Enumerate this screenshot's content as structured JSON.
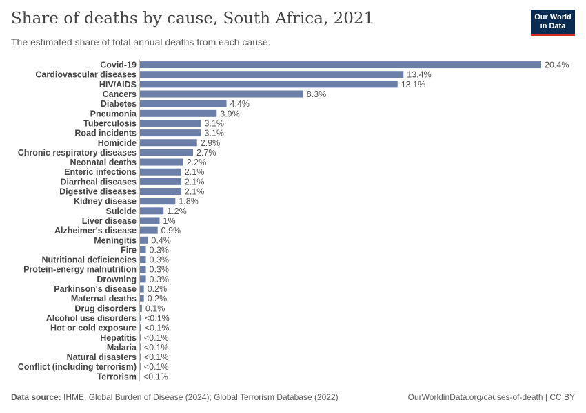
{
  "header": {
    "title": "Share of deaths by cause, South Africa, 2021",
    "subtitle": "The estimated share of total annual deaths from each cause."
  },
  "logo": {
    "line1": "Our World",
    "line2": "in Data"
  },
  "footer": {
    "source_label": "Data source:",
    "source_text": "IHME, Global Burden of Disease (2024); Global Terrorism Database (2022)",
    "right_text": "OurWorldinData.org/causes-of-death | CC BY"
  },
  "colors": {
    "bar": "#6b7fa8",
    "axis": "#bfbfbf",
    "logo_bg": "#0b2c52",
    "logo_accent": "#d42b21"
  },
  "chart_data": {
    "type": "bar",
    "orientation": "horizontal",
    "categories": [
      "Covid-19",
      "Cardiovascular diseases",
      "HIV/AIDS",
      "Cancers",
      "Diabetes",
      "Pneumonia",
      "Tuberculosis",
      "Road incidents",
      "Homicide",
      "Chronic respiratory diseases",
      "Neonatal deaths",
      "Enteric infections",
      "Diarrheal diseases",
      "Digestive diseases",
      "Kidney disease",
      "Suicide",
      "Liver disease",
      "Alzheimer's disease",
      "Meningitis",
      "Fire",
      "Nutritional deficiencies",
      "Protein-energy malnutrition",
      "Drowning",
      "Parkinson's disease",
      "Maternal deaths",
      "Drug disorders",
      "Alcohol use disorders",
      "Hot or cold exposure",
      "Hepatitis",
      "Malaria",
      "Natural disasters",
      "Conflict (including terrorism)",
      "Terrorism"
    ],
    "values": [
      20.4,
      13.4,
      13.1,
      8.3,
      4.4,
      3.9,
      3.1,
      3.1,
      2.9,
      2.7,
      2.2,
      2.1,
      2.1,
      2.1,
      1.8,
      1.2,
      1.0,
      0.9,
      0.4,
      0.3,
      0.3,
      0.3,
      0.3,
      0.2,
      0.2,
      0.1,
      0.07,
      0.06,
      0.03,
      0.01,
      0.01,
      0.01,
      0.0
    ],
    "value_labels": [
      "20.4%",
      "13.4%",
      "13.1%",
      "8.3%",
      "4.4%",
      "3.9%",
      "3.1%",
      "3.1%",
      "2.9%",
      "2.7%",
      "2.2%",
      "2.1%",
      "2.1%",
      "2.1%",
      "1.8%",
      "1.2%",
      "1%",
      "0.9%",
      "0.4%",
      "0.3%",
      "0.3%",
      "0.3%",
      "0.3%",
      "0.2%",
      "0.2%",
      "0.1%",
      "<0.1%",
      "<0.1%",
      "<0.1%",
      "<0.1%",
      "<0.1%",
      "<0.1%",
      "<0.1%"
    ],
    "unit": "%",
    "xlim": [
      0,
      20.4
    ]
  }
}
